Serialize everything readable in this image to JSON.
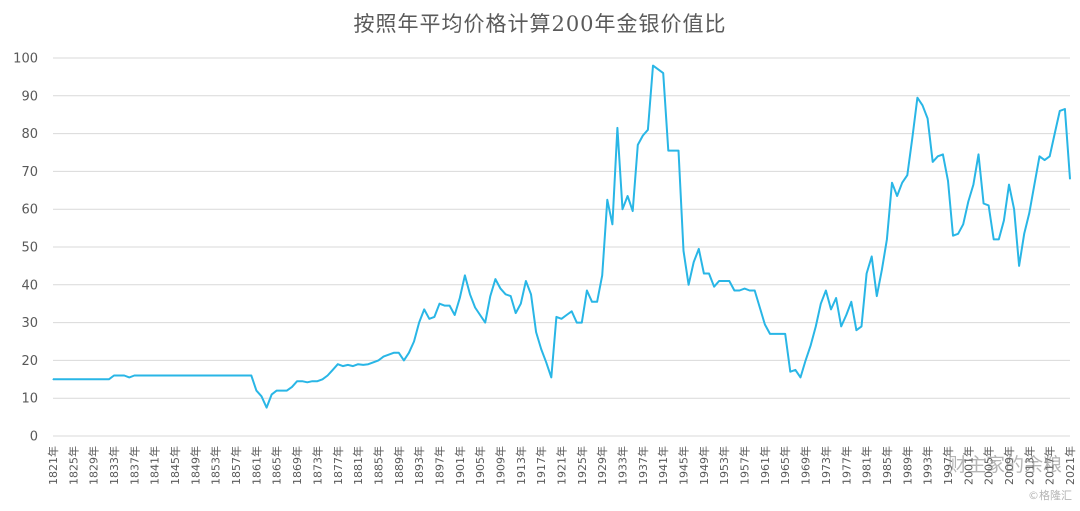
{
  "chart_data": {
    "type": "line",
    "title": "按照年平均价格计算200年金银价值比",
    "ylim": [
      0,
      100
    ],
    "yticks": [
      0,
      10,
      20,
      30,
      40,
      50,
      60,
      70,
      80,
      90,
      100
    ],
    "grid": true,
    "line_color": "#29b6e6",
    "x_tick_labels": [
      "1821年",
      "1825年",
      "1829年",
      "1833年",
      "1837年",
      "1841年",
      "1845年",
      "1849年",
      "1853年",
      "1857年",
      "1861年",
      "1865年",
      "1869年",
      "1873年",
      "1877年",
      "1881年",
      "1885年",
      "1889年",
      "1893年",
      "1897年",
      "1901年",
      "1905年",
      "1909年",
      "1913年",
      "1917年",
      "1921年",
      "1925年",
      "1929年",
      "1933年",
      "1937年",
      "1941年",
      "1945年",
      "1949年",
      "1953年",
      "1957年",
      "1961年",
      "1965年",
      "1969年",
      "1973年",
      "1977年",
      "1981年",
      "1985年",
      "1989年",
      "1993年",
      "1997年",
      "2001年",
      "2005年",
      "2009年",
      "2013年",
      "2017年",
      "2021年"
    ],
    "series": [
      {
        "points": [
          [
            1821,
            15
          ],
          [
            1822,
            15
          ],
          [
            1823,
            15
          ],
          [
            1824,
            15
          ],
          [
            1825,
            15
          ],
          [
            1826,
            15
          ],
          [
            1827,
            15
          ],
          [
            1828,
            15
          ],
          [
            1829,
            15
          ],
          [
            1830,
            15
          ],
          [
            1831,
            15
          ],
          [
            1832,
            15
          ],
          [
            1833,
            16
          ],
          [
            1834,
            16
          ],
          [
            1835,
            16
          ],
          [
            1836,
            15.5
          ],
          [
            1837,
            16
          ],
          [
            1838,
            16
          ],
          [
            1839,
            16
          ],
          [
            1840,
            16
          ],
          [
            1841,
            16
          ],
          [
            1842,
            16
          ],
          [
            1843,
            16
          ],
          [
            1844,
            16
          ],
          [
            1845,
            16
          ],
          [
            1846,
            16
          ],
          [
            1847,
            16
          ],
          [
            1848,
            16
          ],
          [
            1849,
            16
          ],
          [
            1850,
            16
          ],
          [
            1851,
            16
          ],
          [
            1852,
            16
          ],
          [
            1853,
            16
          ],
          [
            1854,
            16
          ],
          [
            1855,
            16
          ],
          [
            1856,
            16
          ],
          [
            1857,
            16
          ],
          [
            1858,
            16
          ],
          [
            1859,
            16
          ],
          [
            1860,
            16
          ],
          [
            1861,
            12
          ],
          [
            1862,
            10.5
          ],
          [
            1863,
            7.5
          ],
          [
            1864,
            11
          ],
          [
            1865,
            12
          ],
          [
            1866,
            12
          ],
          [
            1867,
            12
          ],
          [
            1868,
            13
          ],
          [
            1869,
            14.5
          ],
          [
            1870,
            14.5
          ],
          [
            1871,
            14.2
          ],
          [
            1872,
            14.5
          ],
          [
            1873,
            14.5
          ],
          [
            1874,
            15
          ],
          [
            1875,
            16
          ],
          [
            1876,
            17.5
          ],
          [
            1877,
            19
          ],
          [
            1878,
            18.5
          ],
          [
            1879,
            18.8
          ],
          [
            1880,
            18.5
          ],
          [
            1881,
            19
          ],
          [
            1882,
            18.8
          ],
          [
            1883,
            19
          ],
          [
            1884,
            19.5
          ],
          [
            1885,
            20
          ],
          [
            1886,
            21
          ],
          [
            1887,
            21.5
          ],
          [
            1888,
            22
          ],
          [
            1889,
            22
          ],
          [
            1890,
            20
          ],
          [
            1891,
            22
          ],
          [
            1892,
            25
          ],
          [
            1893,
            30
          ],
          [
            1894,
            33.5
          ],
          [
            1895,
            31
          ],
          [
            1896,
            31.5
          ],
          [
            1897,
            35
          ],
          [
            1898,
            34.5
          ],
          [
            1899,
            34.5
          ],
          [
            1900,
            32
          ],
          [
            1901,
            36.5
          ],
          [
            1902,
            42.5
          ],
          [
            1903,
            37.5
          ],
          [
            1904,
            34
          ],
          [
            1905,
            32
          ],
          [
            1906,
            30
          ],
          [
            1907,
            37
          ],
          [
            1908,
            41.5
          ],
          [
            1909,
            39
          ],
          [
            1910,
            37.5
          ],
          [
            1911,
            37
          ],
          [
            1912,
            32.5
          ],
          [
            1913,
            35
          ],
          [
            1914,
            41
          ],
          [
            1915,
            37.5
          ],
          [
            1916,
            27.5
          ],
          [
            1917,
            23
          ],
          [
            1918,
            19.5
          ],
          [
            1919,
            15.5
          ],
          [
            1920,
            31.5
          ],
          [
            1921,
            31
          ],
          [
            1922,
            32
          ],
          [
            1923,
            33
          ],
          [
            1924,
            30
          ],
          [
            1925,
            30
          ],
          [
            1926,
            38.5
          ],
          [
            1927,
            35.5
          ],
          [
            1928,
            35.5
          ],
          [
            1929,
            42.5
          ],
          [
            1930,
            62.5
          ],
          [
            1931,
            56
          ],
          [
            1932,
            81.5
          ],
          [
            1933,
            60
          ],
          [
            1934,
            63.5
          ],
          [
            1935,
            59.5
          ],
          [
            1936,
            77
          ],
          [
            1937,
            79.5
          ],
          [
            1938,
            81
          ],
          [
            1939,
            98
          ],
          [
            1940,
            97
          ],
          [
            1941,
            96
          ],
          [
            1942,
            75.5
          ],
          [
            1943,
            75.5
          ],
          [
            1944,
            75.5
          ],
          [
            1945,
            49
          ],
          [
            1946,
            40
          ],
          [
            1947,
            46
          ],
          [
            1948,
            49.5
          ],
          [
            1949,
            43
          ],
          [
            1950,
            43
          ],
          [
            1951,
            39.5
          ],
          [
            1952,
            41
          ],
          [
            1953,
            41
          ],
          [
            1954,
            41
          ],
          [
            1955,
            38.5
          ],
          [
            1956,
            38.5
          ],
          [
            1957,
            39
          ],
          [
            1958,
            38.5
          ],
          [
            1959,
            38.5
          ],
          [
            1960,
            34
          ],
          [
            1961,
            29.5
          ],
          [
            1962,
            27
          ],
          [
            1963,
            27
          ],
          [
            1964,
            27
          ],
          [
            1965,
            27
          ],
          [
            1966,
            17
          ],
          [
            1967,
            17.5
          ],
          [
            1968,
            15.5
          ],
          [
            1969,
            20
          ],
          [
            1970,
            24
          ],
          [
            1971,
            29
          ],
          [
            1972,
            35
          ],
          [
            1973,
            38.5
          ],
          [
            1974,
            33.5
          ],
          [
            1975,
            36.5
          ],
          [
            1976,
            29
          ],
          [
            1977,
            32
          ],
          [
            1978,
            35.5
          ],
          [
            1979,
            28
          ],
          [
            1980,
            29
          ],
          [
            1981,
            43
          ],
          [
            1982,
            47.5
          ],
          [
            1983,
            37
          ],
          [
            1984,
            44
          ],
          [
            1985,
            52
          ],
          [
            1986,
            67
          ],
          [
            1987,
            63.5
          ],
          [
            1988,
            67
          ],
          [
            1989,
            69
          ],
          [
            1990,
            79
          ],
          [
            1991,
            89.5
          ],
          [
            1992,
            87.5
          ],
          [
            1993,
            84
          ],
          [
            1994,
            72.5
          ],
          [
            1995,
            74
          ],
          [
            1996,
            74.5
          ],
          [
            1997,
            67.5
          ],
          [
            1998,
            53
          ],
          [
            1999,
            53.5
          ],
          [
            2000,
            56
          ],
          [
            2001,
            62
          ],
          [
            2002,
            66.5
          ],
          [
            2003,
            74.5
          ],
          [
            2004,
            61.5
          ],
          [
            2005,
            61
          ],
          [
            2006,
            52
          ],
          [
            2007,
            52
          ],
          [
            2008,
            57
          ],
          [
            2009,
            66.5
          ],
          [
            2010,
            60
          ],
          [
            2011,
            45
          ],
          [
            2012,
            53.5
          ],
          [
            2013,
            59
          ],
          [
            2014,
            66.5
          ],
          [
            2015,
            74
          ],
          [
            2016,
            73
          ],
          [
            2017,
            74
          ],
          [
            2018,
            80
          ],
          [
            2019,
            86
          ],
          [
            2020,
            86.5
          ],
          [
            2021,
            68
          ]
        ]
      }
    ]
  },
  "watermark": "财主家的余粮",
  "watermark_sub": "©格隆汇"
}
